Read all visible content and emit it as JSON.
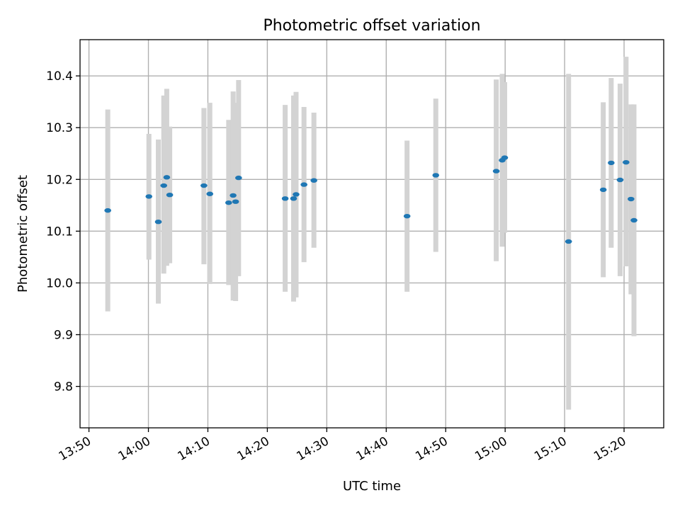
{
  "chart_data": {
    "type": "scatter",
    "title": "Photometric offset variation",
    "xlabel": "UTC time",
    "ylabel": "Photometric offset",
    "grid": true,
    "colors": {
      "point": "#1f77b4",
      "errorbar": "#d3d3d3",
      "grid": "#b0b0b0"
    },
    "xlim": [
      "13:48:30",
      "15:26:40"
    ],
    "ylim": [
      9.72,
      10.47
    ],
    "x_ticks": [
      "13:50",
      "14:00",
      "14:10",
      "14:20",
      "14:30",
      "14:40",
      "14:50",
      "15:00",
      "15:10",
      "15:20"
    ],
    "y_ticks": [
      9.8,
      9.9,
      10.0,
      10.1,
      10.2,
      10.3,
      10.4
    ],
    "y_tick_labels": [
      "9.8",
      "9.9",
      "10.0",
      "10.1",
      "10.2",
      "10.3",
      "10.4"
    ],
    "points": [
      {
        "time": "13:53:10",
        "y": 10.14,
        "ylow": 9.945,
        "yhigh": 10.335
      },
      {
        "time": "14:00:05",
        "y": 10.167,
        "ylow": 10.045,
        "yhigh": 10.288
      },
      {
        "time": "14:01:40",
        "y": 10.118,
        "ylow": 9.96,
        "yhigh": 10.277
      },
      {
        "time": "14:02:35",
        "y": 10.188,
        "ylow": 10.018,
        "yhigh": 10.362
      },
      {
        "time": "14:03:05",
        "y": 10.204,
        "ylow": 10.033,
        "yhigh": 10.375
      },
      {
        "time": "14:03:35",
        "y": 10.17,
        "ylow": 10.038,
        "yhigh": 10.302
      },
      {
        "time": "14:09:20",
        "y": 10.188,
        "ylow": 10.036,
        "yhigh": 10.338
      },
      {
        "time": "14:10:20",
        "y": 10.172,
        "ylow": 9.998,
        "yhigh": 10.348
      },
      {
        "time": "14:13:30",
        "y": 10.155,
        "ylow": 9.996,
        "yhigh": 10.315
      },
      {
        "time": "14:14:15",
        "y": 10.169,
        "ylow": 9.966,
        "yhigh": 10.37
      },
      {
        "time": "14:14:40",
        "y": 10.157,
        "ylow": 9.965,
        "yhigh": 10.348
      },
      {
        "time": "14:15:10",
        "y": 10.203,
        "ylow": 10.013,
        "yhigh": 10.392
      },
      {
        "time": "14:23:00",
        "y": 10.163,
        "ylow": 9.983,
        "yhigh": 10.344
      },
      {
        "time": "14:24:25",
        "y": 10.163,
        "ylow": 9.964,
        "yhigh": 10.362
      },
      {
        "time": "14:24:50",
        "y": 10.171,
        "ylow": 9.972,
        "yhigh": 10.369
      },
      {
        "time": "14:26:10",
        "y": 10.19,
        "ylow": 10.04,
        "yhigh": 10.34
      },
      {
        "time": "14:27:50",
        "y": 10.198,
        "ylow": 10.068,
        "yhigh": 10.329
      },
      {
        "time": "14:43:30",
        "y": 10.129,
        "ylow": 9.983,
        "yhigh": 10.275
      },
      {
        "time": "14:48:20",
        "y": 10.208,
        "ylow": 10.06,
        "yhigh": 10.356
      },
      {
        "time": "14:58:30",
        "y": 10.216,
        "ylow": 10.042,
        "yhigh": 10.393
      },
      {
        "time": "14:59:30",
        "y": 10.237,
        "ylow": 10.07,
        "yhigh": 10.404
      },
      {
        "time": "14:59:55",
        "y": 10.242,
        "ylow": 10.097,
        "yhigh": 10.388
      },
      {
        "time": "15:10:40",
        "y": 10.08,
        "ylow": 9.755,
        "yhigh": 10.404
      },
      {
        "time": "15:16:30",
        "y": 10.18,
        "ylow": 10.011,
        "yhigh": 10.349
      },
      {
        "time": "15:17:50",
        "y": 10.232,
        "ylow": 10.068,
        "yhigh": 10.396
      },
      {
        "time": "15:19:20",
        "y": 10.199,
        "ylow": 10.013,
        "yhigh": 10.385
      },
      {
        "time": "15:20:20",
        "y": 10.233,
        "ylow": 10.032,
        "yhigh": 10.437
      },
      {
        "time": "15:21:10",
        "y": 10.162,
        "ylow": 9.978,
        "yhigh": 10.345
      },
      {
        "time": "15:21:40",
        "y": 10.121,
        "ylow": 9.897,
        "yhigh": 10.345
      }
    ]
  }
}
